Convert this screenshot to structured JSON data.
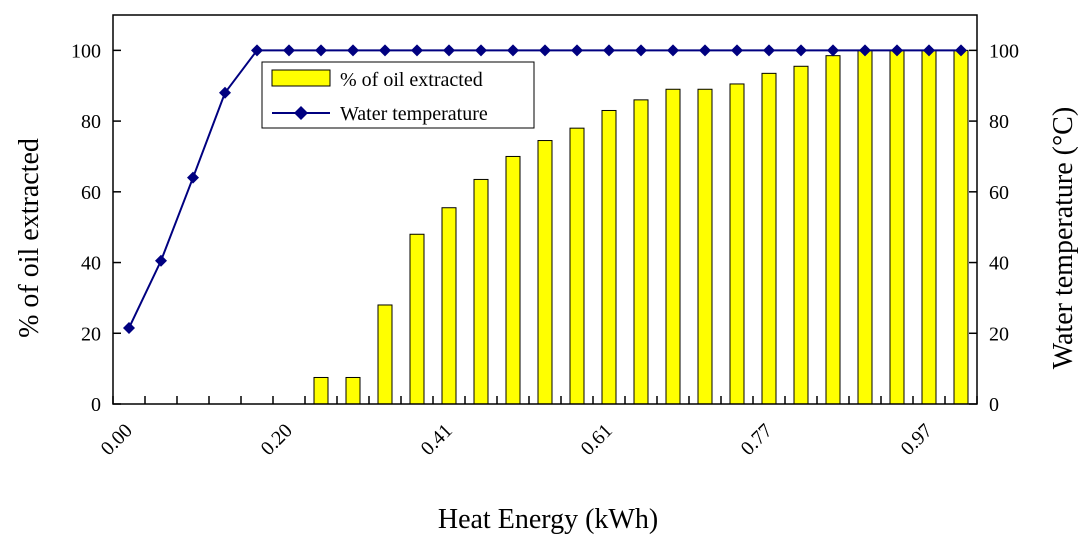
{
  "chart_data": {
    "type": "bar+line",
    "xlabel": "Heat Energy (kWh)",
    "ylabel_left": "% of oil extracted",
    "ylabel_right": "Water temperature (°C)",
    "y_left_lim": [
      0,
      110
    ],
    "y_right_lim": [
      0,
      110
    ],
    "y_ticks": [
      0,
      20,
      40,
      60,
      80,
      100
    ],
    "x_tick_labels": [
      "0.00",
      "0.20",
      "0.41",
      "0.61",
      "0.77",
      "0.97"
    ],
    "x_tick_label_index": [
      0,
      5,
      10,
      15,
      20,
      25
    ],
    "n_points": 27,
    "grid": false,
    "legend_position": "top-center",
    "series": [
      {
        "name": "% of  oil extracted",
        "kind": "bar",
        "color": "#ffff00",
        "values": [
          0,
          0,
          0,
          0,
          0,
          0,
          7.5,
          7.5,
          28,
          48,
          55.5,
          63.5,
          70,
          74.5,
          78,
          83,
          86,
          89,
          89,
          90.5,
          93.5,
          95.5,
          98.5,
          100,
          100,
          100,
          100
        ]
      },
      {
        "name": "Water temperature",
        "kind": "line",
        "color": "#000080",
        "values": [
          21.5,
          40.5,
          64,
          88,
          100,
          100,
          100,
          100,
          100,
          100,
          100,
          100,
          100,
          100,
          100,
          100,
          100,
          100,
          100,
          100,
          100,
          100,
          100,
          100,
          100,
          100,
          100
        ]
      }
    ]
  }
}
